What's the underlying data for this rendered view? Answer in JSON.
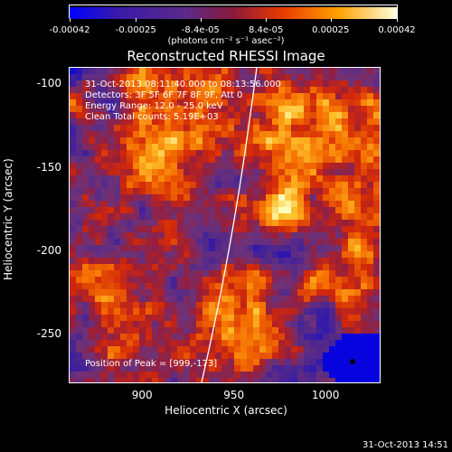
{
  "colorbar": {
    "ticks": [
      "-0.00042",
      "-0.00025",
      "-8.4e-05",
      "8.4e-05",
      "0.00025",
      "0.00042"
    ],
    "unit": "(photons cm⁻² s⁻¹ asec⁻²)"
  },
  "title": "Reconstructed RHESSI Image",
  "info": {
    "time_range": "31-Oct-2013 08:11:40.000 to 08:13:56.000",
    "detectors": "Detectors: 3F 5F 6F 7F 8F 9F, Att 0",
    "energy": "Energy Range: 12.0 - 25.0 keV",
    "method": "Clean     Total counts: 5.19E+03"
  },
  "peak_text": "Position of Peak = [999,-173]",
  "axes": {
    "xlabel": "Heliocentric X (arcsec)",
    "ylabel": "Heliocentric Y (arcsec)",
    "xticks": [
      "900",
      "950",
      "1000"
    ],
    "yticks": [
      "-100",
      "-150",
      "-200",
      "-250"
    ]
  },
  "timestamp": "31-Oct-2013 14:51",
  "colors": {
    "background": "#000000",
    "low": "#0000ff",
    "mid": "#5a2a8a",
    "high": "#ffff66"
  },
  "chart_data": {
    "type": "heatmap",
    "title": "Reconstructed RHESSI Image",
    "xlabel": "Heliocentric X (arcsec)",
    "ylabel": "Heliocentric Y (arcsec)",
    "xlim": [
      860,
      1030
    ],
    "ylim": [
      -280,
      -90
    ],
    "xticks": [
      900,
      950,
      1000
    ],
    "yticks": [
      -100,
      -150,
      -200,
      -250
    ],
    "colorbar_range": [
      -0.00042,
      0.00042
    ],
    "colorbar_ticks": [
      -0.00042,
      -0.00025,
      -8.4e-05,
      8.4e-05,
      0.00025,
      0.00042
    ],
    "peak": [
      999,
      -173
    ]
  }
}
